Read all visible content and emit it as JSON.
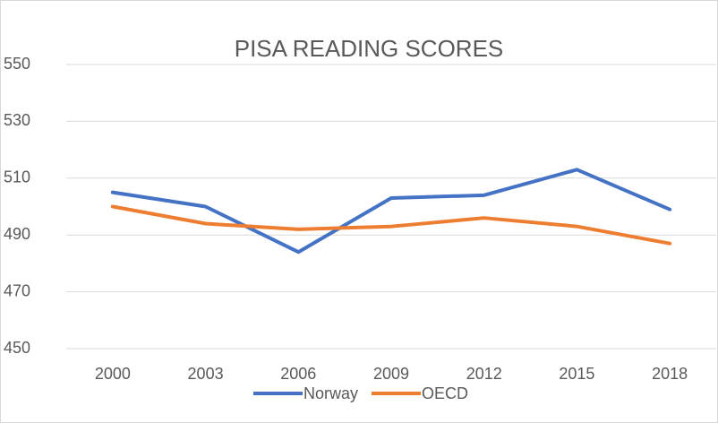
{
  "chart_data": {
    "type": "line",
    "title": "PISA READING SCORES",
    "categories": [
      "2000",
      "2003",
      "2006",
      "2009",
      "2012",
      "2015",
      "2018"
    ],
    "series": [
      {
        "name": "Norway",
        "color": "#4472c4",
        "values": [
          505,
          500,
          484,
          503,
          504,
          513,
          499
        ]
      },
      {
        "name": "OECD",
        "color": "#ed7d31",
        "values": [
          500,
          494,
          492,
          493,
          496,
          493,
          487
        ]
      }
    ],
    "ylim": [
      450,
      550
    ],
    "yticks": [
      450,
      470,
      490,
      510,
      530,
      550
    ],
    "grid": true,
    "legend": "bottom"
  }
}
